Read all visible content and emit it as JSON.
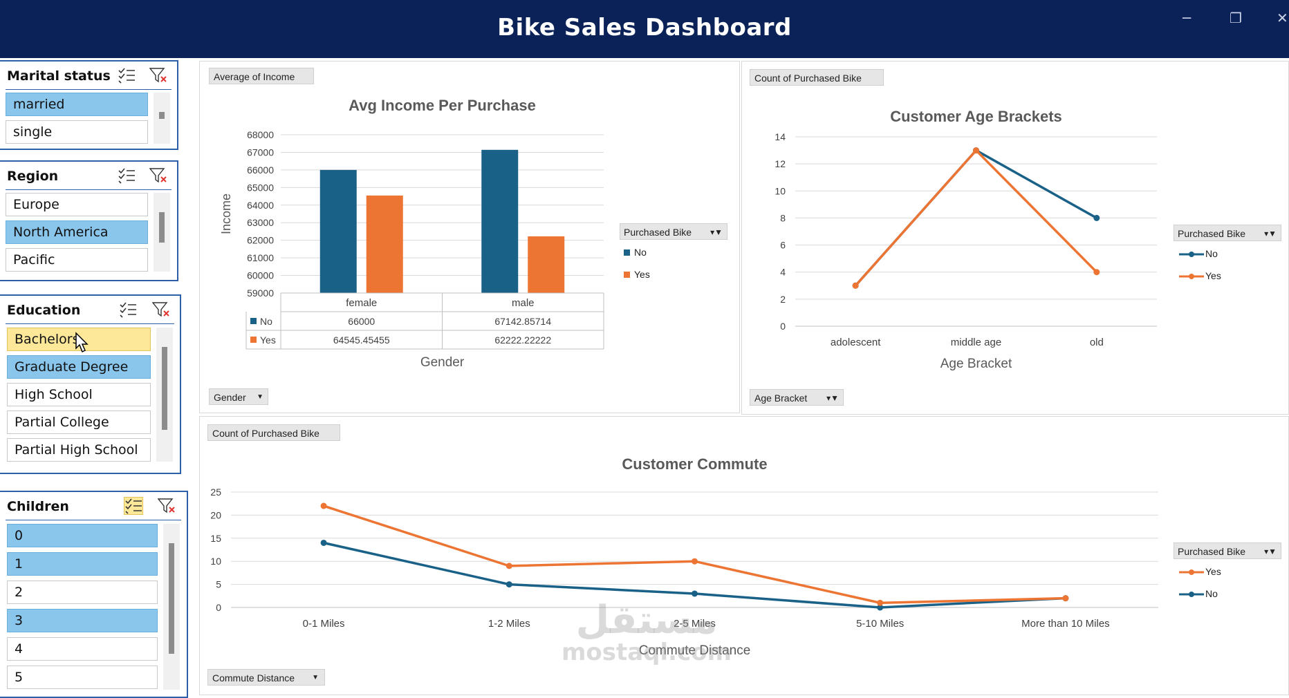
{
  "window": {
    "title": "Bike Sales  Dashboard",
    "minimize_label": "─",
    "restore_label": "❐",
    "close_label": "✕"
  },
  "colors": {
    "no": "#1a6188",
    "yes": "#ed7534",
    "header": "#0a2257",
    "selected": "#8ac5eb"
  },
  "slicers": {
    "marital": {
      "title": "Marital status",
      "items": [
        "married",
        "single"
      ]
    },
    "region": {
      "title": "Region",
      "items": [
        "Europe",
        "North America",
        "Pacific"
      ]
    },
    "education": {
      "title": "Education",
      "items": [
        "Bachelors",
        "Graduate Degree",
        "High School",
        "Partial College",
        "Partial High School"
      ]
    },
    "children": {
      "title": "Children",
      "items": [
        "0",
        "1",
        "2",
        "3",
        "4",
        "5"
      ]
    }
  },
  "selection": {
    "marital": [
      "married"
    ],
    "region": [
      "North America"
    ],
    "education": [
      "Graduate Degree"
    ],
    "education_hover": "Bachelors",
    "children": [
      "0",
      "1",
      "3"
    ]
  },
  "income_panel": {
    "value_button": "Average of Income",
    "axis_button": "Gender",
    "legend_title": "Purchased Bike",
    "legend_items": [
      "No",
      "Yes"
    ],
    "table_values": {
      "no": [
        "66000",
        "67142.85714"
      ],
      "yes": [
        "64545.45455",
        "62222.22222"
      ]
    }
  },
  "age_panel": {
    "value_button": "Count of Purchased Bike",
    "axis_button": "Age Bracket",
    "legend_title": "Purchased Bike",
    "legend_items": [
      "No",
      "Yes"
    ]
  },
  "commute_panel": {
    "value_button": "Count of Purchased Bike",
    "axis_button": "Commute Distance",
    "legend_title": "Purchased Bike",
    "legend_items": [
      "Yes",
      "No"
    ]
  },
  "watermark": {
    "arabic": "مستقل",
    "latin": "mostaql.com"
  },
  "chart_data": [
    {
      "type": "bar",
      "title": "Avg Income Per Purchase",
      "xlabel": "Gender",
      "ylabel": "Income",
      "categories": [
        "female",
        "male"
      ],
      "series": [
        {
          "name": "No",
          "values": [
            66000,
            67142.85714
          ]
        },
        {
          "name": "Yes",
          "values": [
            64545.45455,
            62222.22222
          ]
        }
      ],
      "ylim": [
        59000,
        68000
      ],
      "yticks": [
        59000,
        60000,
        61000,
        62000,
        63000,
        64000,
        65000,
        66000,
        67000,
        68000
      ],
      "grid": true,
      "legend": "right",
      "data_table": true
    },
    {
      "type": "line",
      "title": "Customer Age Brackets",
      "xlabel": "Age Bracket",
      "ylabel": "",
      "categories": [
        "adolescent",
        "middle age",
        "old"
      ],
      "series": [
        {
          "name": "No",
          "values": [
            3,
            13,
            8
          ]
        },
        {
          "name": "Yes",
          "values": [
            3,
            13,
            4
          ]
        }
      ],
      "ylim": [
        0,
        14
      ],
      "yticks": [
        0,
        2,
        4,
        6,
        8,
        10,
        12,
        14
      ],
      "grid": true,
      "legend": "right"
    },
    {
      "type": "line",
      "title": "Customer Commute",
      "xlabel": "Commute Distance",
      "ylabel": "",
      "categories": [
        "0-1 Miles",
        "1-2 Miles",
        "2-5 Miles",
        "5-10 Miles",
        "More than 10 Miles"
      ],
      "series": [
        {
          "name": "Yes",
          "values": [
            22,
            9,
            10,
            1,
            2
          ]
        },
        {
          "name": "No",
          "values": [
            14,
            5,
            3,
            0,
            2
          ]
        }
      ],
      "ylim": [
        0,
        25
      ],
      "yticks": [
        0,
        5,
        10,
        15,
        20,
        25
      ],
      "grid": true,
      "legend": "right"
    }
  ]
}
